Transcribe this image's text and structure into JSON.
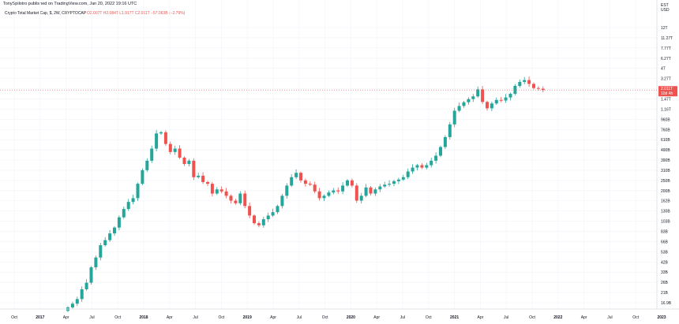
{
  "header": {
    "publisher": "TonySpilotro published on TradingView.com, Jan 20, 2022 19:16 UTC",
    "symbol": "Crypto Total Market Cap, $, 2W, CRYPTOCAP",
    "ohlc": "O2.007T  H2.084T  L1.917T  C2.011T  −57.063B (−2.79%)"
  },
  "price_tag": {
    "value": "2.011T",
    "sub": "10d 4h"
  },
  "colors": {
    "up": "#26a69a",
    "down": "#ef5350",
    "grid": "#f0f3fa",
    "axis_text": "#131722"
  },
  "chart_data": {
    "type": "candlestick",
    "scale": "log",
    "interval": "2W",
    "currency": "USD",
    "y_tick_labels": [
      "12T",
      "11.27T",
      "7.77T",
      "6.27T",
      "4T",
      "3.27T",
      "2.47T",
      "1.47T",
      "1.16T",
      "960B",
      "760B",
      "610B",
      "490B",
      "390B",
      "310B",
      "250B",
      "200B",
      "162B",
      "130B",
      "103B",
      "83B",
      "66B",
      "53B",
      "42B",
      "33B",
      "26B",
      "21B",
      "16.9B"
    ],
    "y_axis_unit_top": "EST\nUSD",
    "x_tick_labels": [
      "Oct",
      "2017",
      "Apr",
      "Jul",
      "Oct",
      "2018",
      "Apr",
      "Jul",
      "Oct",
      "2019",
      "Apr",
      "Jul",
      "Oct",
      "2020",
      "Apr",
      "Jul",
      "Oct",
      "2021",
      "Apr",
      "Jul",
      "Oct",
      "2022",
      "Apr",
      "Jul",
      "Oct",
      "2023"
    ],
    "close_values_billions": [
      17.5,
      19,
      21,
      26,
      30,
      42,
      52,
      68,
      76,
      88,
      100,
      125,
      150,
      175,
      190,
      260,
      350,
      430,
      560,
      780,
      800,
      620,
      520,
      560,
      460,
      400,
      430,
      300,
      310,
      270,
      260,
      210,
      230,
      220,
      200,
      180,
      170,
      210,
      160,
      130,
      110,
      105,
      120,
      130,
      140,
      160,
      200,
      250,
      300,
      330,
      280,
      260,
      255,
      220,
      190,
      200,
      215,
      225,
      220,
      250,
      280,
      250,
      180,
      200,
      240,
      210,
      230,
      245,
      255,
      260,
      275,
      285,
      300,
      340,
      370,
      390,
      370,
      390,
      430,
      480,
      580,
      720,
      950,
      1280,
      1420,
      1540,
      1650,
      1750,
      2040,
      1550,
      1350,
      1500,
      1620,
      1600,
      1710,
      1850,
      2200,
      2400,
      2500,
      2300,
      2100,
      2070,
      2011
    ]
  }
}
